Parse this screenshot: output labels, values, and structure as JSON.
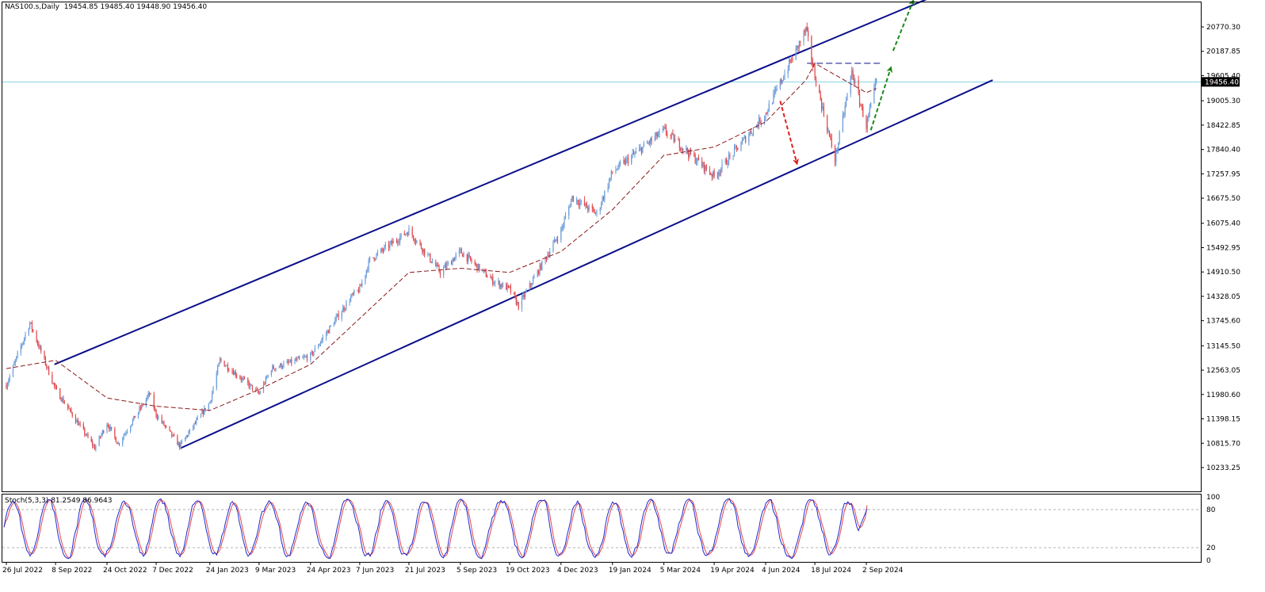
{
  "header": {
    "symbol": "NAS100.s,Daily",
    "ohlc": "19454.85 19485.40 19448.90 19456.40"
  },
  "stoch_header": {
    "label": "Stoch(5,3,3)",
    "values": "81.2549 86.9643"
  },
  "colors": {
    "bull": "#6a9bd8",
    "bear": "#e2474b",
    "ma": "#8b1a1a",
    "channel": "#0a0f8a",
    "bid_line": "#86d0e0",
    "arrow_up": "#1a8a1a",
    "arrow_down": "#e01e1e",
    "stoch_main": "#1e2ad0",
    "stoch_signal": "#e2474b",
    "stoch_level": "#b0b0b0"
  },
  "chart_data": [
    {
      "type": "candlestick",
      "title": "",
      "price_ticks": [
        "20770.30",
        "20187.85",
        "19605.40",
        "19005.30",
        "18422.85",
        "17840.40",
        "17257.95",
        "16675.50",
        "16075.40",
        "15492.95",
        "14910.50",
        "14328.05",
        "13745.60",
        "13145.50",
        "12563.05",
        "11980.60",
        "11398.15",
        "10815.70",
        "10233.25"
      ],
      "current_price": "19456.40",
      "ylim": [
        10150,
        21300
      ],
      "x_ticks": [
        "26 Jul 2022",
        "8 Sep 2022",
        "24 Oct 2022",
        "7 Dec 2022",
        "24 Jan 2023",
        "9 Mar 2023",
        "24 Apr 2023",
        "7 Jun 2023",
        "21 Jul 2023",
        "5 Sep 2023",
        "19 Oct 2023",
        "4 Dec 2023",
        "19 Jan 2024",
        "5 Mar 2024",
        "19 Apr 2024",
        "4 Jun 2024",
        "18 Jul 2024",
        "2 Sep 2024"
      ],
      "price_path": [
        [
          "26 Jul 2022",
          12200
        ],
        [
          "16 Aug 2022",
          13700
        ],
        [
          "8 Sep 2022",
          12100
        ],
        [
          "13 Oct 2022",
          10700
        ],
        [
          "24 Oct 2022",
          11300
        ],
        [
          "3 Nov 2022",
          10800
        ],
        [
          "1 Dec 2022",
          12000
        ],
        [
          "7 Dec 2022",
          11500
        ],
        [
          "28 Dec 2022",
          10750
        ],
        [
          "24 Jan 2023",
          11800
        ],
        [
          "2 Feb 2023",
          12800
        ],
        [
          "9 Mar 2023",
          12000
        ],
        [
          "20 Mar 2023",
          12600
        ],
        [
          "24 Apr 2023",
          12900
        ],
        [
          "30 May 2023",
          14300
        ],
        [
          "7 Jun 2023",
          14500
        ],
        [
          "16 Jun 2023",
          15200
        ],
        [
          "21 Jul 2023",
          15900
        ],
        [
          "18 Aug 2023",
          14900
        ],
        [
          "5 Sep 2023",
          15400
        ],
        [
          "4 Oct 2023",
          14700
        ],
        [
          "19 Oct 2023",
          14500
        ],
        [
          "27 Oct 2023",
          14100
        ],
        [
          "4 Dec 2023",
          15900
        ],
        [
          "14 Dec 2023",
          16700
        ],
        [
          "5 Jan 2024",
          16300
        ],
        [
          "19 Jan 2024",
          17300
        ],
        [
          "5 Mar 2024",
          18300
        ],
        [
          "19 Apr 2024",
          17200
        ],
        [
          "4 Jun 2024",
          18700
        ],
        [
          "20 Jun 2024",
          19600
        ],
        [
          "10 Jul 2024",
          20700
        ],
        [
          "18 Jul 2024",
          19600
        ],
        [
          "25 Jul 2024",
          18800
        ],
        [
          "5 Aug 2024",
          17600
        ],
        [
          "20 Aug 2024",
          19700
        ],
        [
          "2 Sep 2024",
          18400
        ],
        [
          "11 Sep 2024",
          19456
        ]
      ],
      "moving_average_path": [
        [
          "26 Jul 2022",
          12600
        ],
        [
          "8 Sep 2022",
          12800
        ],
        [
          "24 Oct 2022",
          11900
        ],
        [
          "7 Dec 2022",
          11700
        ],
        [
          "24 Jan 2023",
          11600
        ],
        [
          "9 Mar 2023",
          12100
        ],
        [
          "24 Apr 2023",
          12700
        ],
        [
          "7 Jun 2023",
          13800
        ],
        [
          "21 Jul 2023",
          14900
        ],
        [
          "5 Sep 2023",
          15000
        ],
        [
          "19 Oct 2023",
          14900
        ],
        [
          "4 Dec 2023",
          15400
        ],
        [
          "19 Jan 2024",
          16400
        ],
        [
          "5 Mar 2024",
          17700
        ],
        [
          "19 Apr 2024",
          17900
        ],
        [
          "4 Jun 2024",
          18500
        ],
        [
          "10 Jul 2024",
          19500
        ],
        [
          "18 Jul 2024",
          19900
        ],
        [
          "2 Sep 2024",
          19200
        ],
        [
          "11 Sep 2024",
          19300
        ]
      ],
      "channel_upper": [
        [
          "7 Sep 2022",
          12700
        ],
        [
          "1 Nov 2024",
          21500
        ]
      ],
      "channel_lower": [
        [
          "29 Dec 2022",
          10700
        ],
        [
          "24 Dec 2024",
          19500
        ]
      ],
      "resistance": [
        [
          "11 Jul 2024",
          19900
        ],
        [
          "17 Sep 2024",
          19900
        ]
      ],
      "arrows": [
        {
          "direction": "down",
          "from": [
            "17 Jun 2024",
            19000
          ],
          "to": [
            "2 Jul 2024",
            17500
          ]
        },
        {
          "direction": "up",
          "from": [
            "6 Sep 2024",
            18300
          ],
          "to": [
            "24 Sep 2024",
            19800
          ]
        },
        {
          "direction": "up",
          "from": [
            "26 Sep 2024",
            20200
          ],
          "to": [
            "14 Oct 2024",
            21400
          ]
        }
      ]
    },
    {
      "type": "line",
      "title": "",
      "ylim": [
        0,
        100
      ],
      "y_ticks": [
        "100",
        "80",
        "20",
        "0"
      ],
      "levels": [
        80,
        20
      ],
      "series": [
        {
          "name": "",
          "values": [
            80,
            78.4,
            81.2549
          ]
        },
        {
          "name": "",
          "values": [
            84,
            85.5,
            86.9643
          ]
        }
      ]
    }
  ]
}
